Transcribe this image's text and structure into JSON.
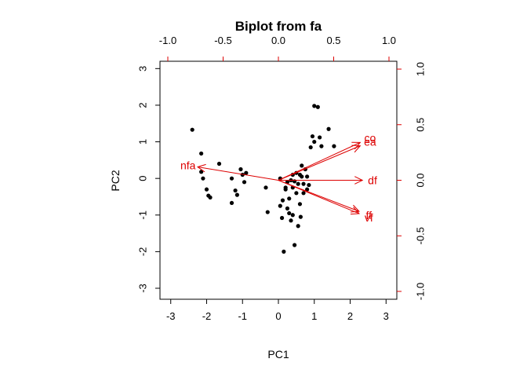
{
  "chart_data": {
    "type": "scatter",
    "title": "Biplot from fa",
    "xlabel": "PC1",
    "ylabel": "PC2",
    "xlim": [
      -3.3,
      3.3
    ],
    "ylim": [
      -3.3,
      3.2
    ],
    "x_ticks": [
      "-3",
      "-2",
      "-1",
      "0",
      "1",
      "2",
      "3"
    ],
    "y_ticks": [
      "-3",
      "-2",
      "-1",
      "0",
      "1",
      "2",
      "3"
    ],
    "loading_axes": {
      "color": "#dd0000",
      "xlim": [
        -1.0,
        1.0
      ],
      "ylim": [
        -1.0,
        1.0
      ],
      "top_ticks": [
        "-1.0",
        "-0.5",
        "0.0",
        "0.5",
        "1.0"
      ],
      "right_ticks": [
        "-1.0",
        "-0.5",
        "0.0",
        "0.5",
        "1.0"
      ]
    },
    "point_color": "#000000",
    "arrow_color": "#dd0000",
    "scores": [
      {
        "x": -2.4,
        "y": 1.33
      },
      {
        "x": -2.15,
        "y": 0.68
      },
      {
        "x": -2.15,
        "y": 0.18
      },
      {
        "x": -2.1,
        "y": 0.0
      },
      {
        "x": -2.0,
        "y": -0.3
      },
      {
        "x": -1.95,
        "y": -0.47
      },
      {
        "x": -1.9,
        "y": -0.52
      },
      {
        "x": -1.65,
        "y": 0.4
      },
      {
        "x": -1.3,
        "y": 0.0
      },
      {
        "x": -1.3,
        "y": -0.67
      },
      {
        "x": -1.2,
        "y": -0.33
      },
      {
        "x": -1.15,
        "y": -0.45
      },
      {
        "x": -1.05,
        "y": 0.25
      },
      {
        "x": -1.0,
        "y": 0.1
      },
      {
        "x": -0.95,
        "y": -0.1
      },
      {
        "x": -0.9,
        "y": 0.15
      },
      {
        "x": -0.35,
        "y": -0.25
      },
      {
        "x": -0.3,
        "y": -0.92
      },
      {
        "x": 0.05,
        "y": 0.0
      },
      {
        "x": 0.05,
        "y": -0.75
      },
      {
        "x": 0.1,
        "y": -1.08
      },
      {
        "x": 0.12,
        "y": -0.6
      },
      {
        "x": 0.15,
        "y": -2.0
      },
      {
        "x": 0.2,
        "y": -0.3
      },
      {
        "x": 0.25,
        "y": -0.82
      },
      {
        "x": 0.25,
        "y": -0.1
      },
      {
        "x": 0.3,
        "y": -0.55
      },
      {
        "x": 0.3,
        "y": -0.95
      },
      {
        "x": 0.35,
        "y": -1.15
      },
      {
        "x": 0.35,
        "y": -0.05
      },
      {
        "x": 0.4,
        "y": 0.1
      },
      {
        "x": 0.4,
        "y": -0.25
      },
      {
        "x": 0.45,
        "y": -1.82
      },
      {
        "x": 0.45,
        "y": -0.08
      },
      {
        "x": 0.5,
        "y": 0.15
      },
      {
        "x": 0.5,
        "y": -0.4
      },
      {
        "x": 0.55,
        "y": -0.15
      },
      {
        "x": 0.55,
        "y": -1.3
      },
      {
        "x": 0.6,
        "y": 0.1
      },
      {
        "x": 0.6,
        "y": -0.7
      },
      {
        "x": 0.62,
        "y": -1.05
      },
      {
        "x": 0.65,
        "y": 0.05
      },
      {
        "x": 0.65,
        "y": 0.35
      },
      {
        "x": 0.7,
        "y": -0.4
      },
      {
        "x": 0.7,
        "y": -0.15
      },
      {
        "x": 0.75,
        "y": 0.25
      },
      {
        "x": 0.8,
        "y": -0.3
      },
      {
        "x": 0.8,
        "y": 0.05
      },
      {
        "x": 0.85,
        "y": -0.18
      },
      {
        "x": 0.9,
        "y": 0.85
      },
      {
        "x": 0.95,
        "y": 1.15
      },
      {
        "x": 1.0,
        "y": 1.98
      },
      {
        "x": 1.0,
        "y": 1.0
      },
      {
        "x": 1.1,
        "y": 1.95
      },
      {
        "x": 1.15,
        "y": 1.12
      },
      {
        "x": 1.2,
        "y": 0.88
      },
      {
        "x": 1.4,
        "y": 1.35
      },
      {
        "x": 1.55,
        "y": 0.88
      },
      {
        "x": 0.4,
        "y": -1.0
      },
      {
        "x": 0.2,
        "y": -0.25
      }
    ],
    "loadings": [
      {
        "name": "co",
        "x": 0.74,
        "y": 0.34
      },
      {
        "name": "ea",
        "x": 0.74,
        "y": 0.31
      },
      {
        "name": "df",
        "x": 0.76,
        "y": 0.0
      },
      {
        "name": "ff",
        "x": 0.73,
        "y": -0.28
      },
      {
        "name": "vf",
        "x": 0.73,
        "y": -0.3
      },
      {
        "name": "nfa",
        "x": -0.73,
        "y": 0.12
      }
    ]
  }
}
